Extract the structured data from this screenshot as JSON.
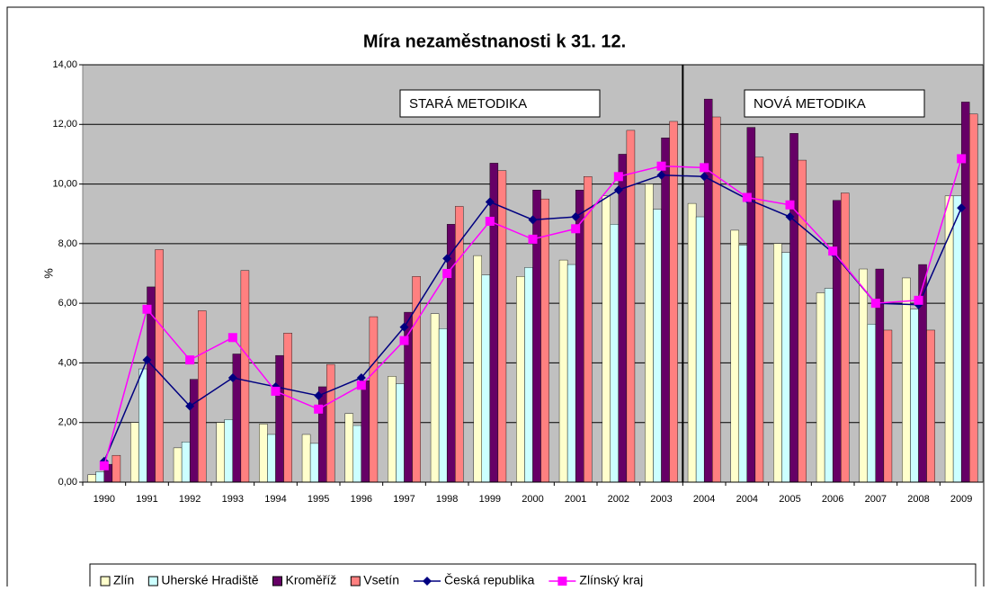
{
  "chart_data": {
    "type": "bar",
    "title": "Míra nezaměstnanosti k 31. 12.",
    "y_label": "%",
    "annotations": [
      "STARÁ  METODIKA",
      "NOVÁ  METODIKA"
    ],
    "categories": [
      "1990",
      "1991",
      "1992",
      "1993",
      "1994",
      "1995",
      "1996",
      "1997",
      "1998",
      "1999",
      "2000",
      "2001",
      "2002",
      "2003",
      "2004",
      "2004",
      "2005",
      "2006",
      "2007",
      "2008",
      "2009"
    ],
    "series": [
      {
        "name": "Zlín",
        "type": "bar",
        "color": "#ffffcc",
        "values": [
          0.25,
          2.0,
          1.15,
          2.0,
          1.95,
          1.6,
          2.3,
          3.55,
          5.65,
          7.6,
          6.9,
          7.45,
          9.6,
          10.0,
          9.35,
          8.45,
          8.0,
          6.35,
          7.15,
          6.85,
          9.6
        ]
      },
      {
        "name": "Uherské Hradiště",
        "type": "bar",
        "color": "#ccffff",
        "values": [
          0.35,
          3.8,
          1.35,
          2.1,
          1.6,
          1.3,
          1.9,
          3.3,
          5.15,
          6.95,
          7.2,
          7.3,
          8.65,
          9.15,
          8.9,
          7.95,
          7.7,
          6.5,
          5.3,
          5.8,
          9.6
        ]
      },
      {
        "name": "Kroměříž",
        "type": "bar",
        "color": "#660066",
        "values": [
          0.6,
          6.55,
          3.45,
          4.3,
          4.25,
          3.2,
          3.4,
          5.7,
          8.65,
          10.7,
          9.8,
          9.8,
          11.0,
          11.55,
          12.85,
          11.9,
          11.7,
          9.45,
          7.15,
          7.3,
          12.75
        ]
      },
      {
        "name": "Vsetín",
        "type": "bar",
        "color": "#ff8080",
        "values": [
          0.9,
          7.8,
          5.75,
          7.1,
          5.0,
          3.95,
          5.55,
          6.9,
          9.25,
          10.45,
          9.5,
          10.25,
          11.8,
          12.1,
          12.25,
          10.9,
          10.8,
          9.7,
          5.1,
          5.1,
          12.35
        ]
      },
      {
        "name": "Česká republika",
        "type": "line",
        "marker": "diamond",
        "color": "#000080",
        "values": [
          0.7,
          4.1,
          2.55,
          3.5,
          3.2,
          2.9,
          3.5,
          5.2,
          7.5,
          9.4,
          8.8,
          8.9,
          9.8,
          10.3,
          10.25,
          9.5,
          8.9,
          7.7,
          6.0,
          5.95,
          9.2
        ]
      },
      {
        "name": "Zlínský kraj",
        "type": "line",
        "marker": "square",
        "color": "#ff00ff",
        "values": [
          0.55,
          5.8,
          4.1,
          4.85,
          3.05,
          2.45,
          3.25,
          4.75,
          7.0,
          8.75,
          8.15,
          8.5,
          10.25,
          10.6,
          10.55,
          9.55,
          9.3,
          7.75,
          6.0,
          6.1,
          10.85
        ]
      }
    ],
    "ylim": [
      0,
      14
    ],
    "yticks": [
      {
        "value": 0,
        "label": "0,00"
      },
      {
        "value": 2,
        "label": "2,00"
      },
      {
        "value": 4,
        "label": "4,00"
      },
      {
        "value": 6,
        "label": "6,00"
      },
      {
        "value": 8,
        "label": "8,00"
      },
      {
        "value": 10,
        "label": "10,00"
      },
      {
        "value": 12,
        "label": "12,00"
      },
      {
        "value": 14,
        "label": "14,00"
      }
    ],
    "grid": true,
    "legend": "bottom"
  }
}
